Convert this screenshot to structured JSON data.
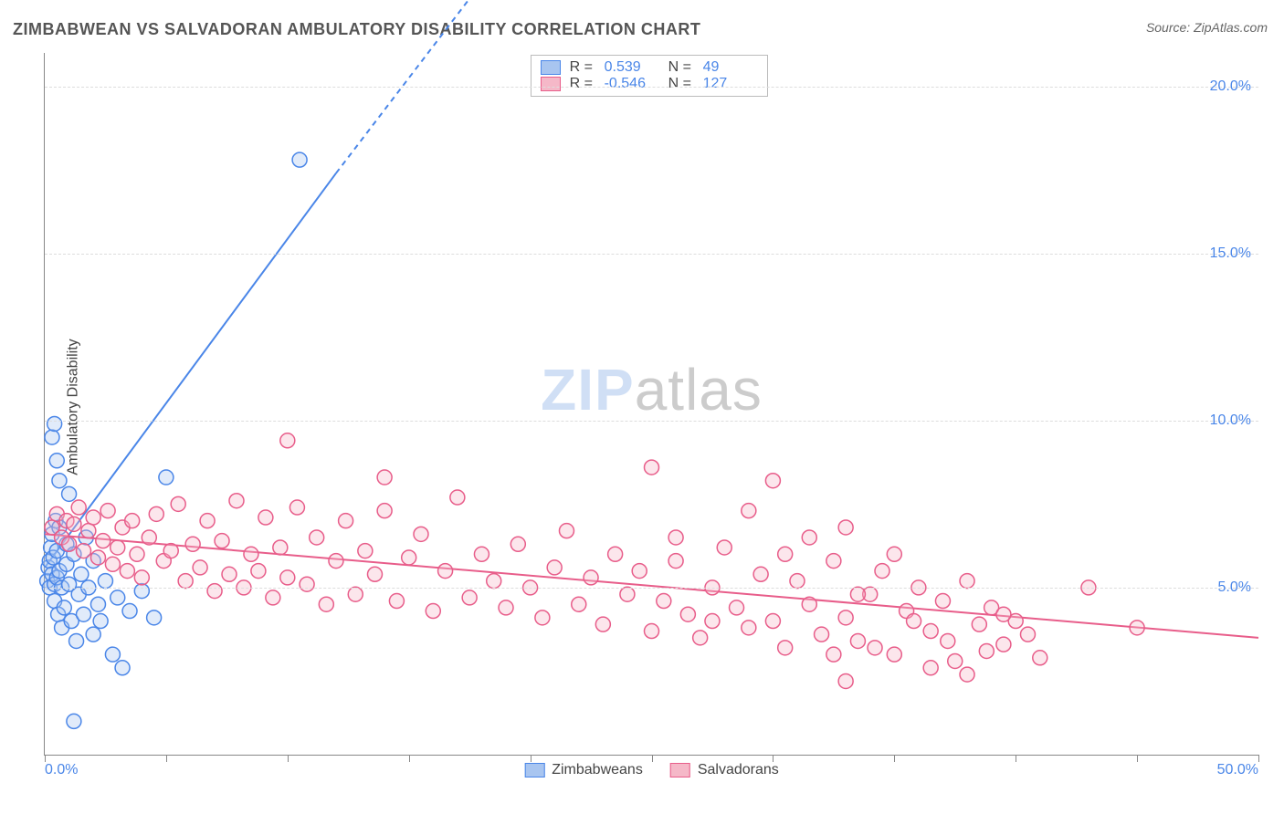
{
  "title": "ZIMBABWEAN VS SALVADORAN AMBULATORY DISABILITY CORRELATION CHART",
  "source_prefix": "Source: ",
  "source_name": "ZipAtlas.com",
  "ylabel": "Ambulatory Disability",
  "watermark_zip": "ZIP",
  "watermark_atlas": "atlas",
  "chart": {
    "type": "scatter",
    "xlim": [
      0,
      50
    ],
    "ylim": [
      0,
      21
    ],
    "background_color": "#ffffff",
    "grid_color": "#dddddd",
    "axis_color": "#888888",
    "y_gridlines": [
      5,
      10,
      15,
      20
    ],
    "y_ticklabels": [
      "5.0%",
      "10.0%",
      "15.0%",
      "20.0%"
    ],
    "x_ticks": [
      0,
      5,
      10,
      15,
      20,
      25,
      30,
      35,
      40,
      45,
      50
    ],
    "x_ticklabels_shown": {
      "0": "0.0%",
      "50": "50.0%"
    },
    "marker_radius": 8,
    "marker_fill_opacity": 0.35,
    "marker_stroke_width": 1.5,
    "tick_label_color": "#4a86e8",
    "tick_label_fontsize": 16,
    "title_fontsize": 18,
    "title_color": "#555555",
    "ylabel_fontsize": 16,
    "ylabel_color": "#444444"
  },
  "series": [
    {
      "name": "Zimbabweans",
      "color_fill": "#a8c5f0",
      "color_stroke": "#4a86e8",
      "R_label": "R =",
      "R_value": "0.539",
      "N_label": "N =",
      "N_value": "49",
      "trend": {
        "x1": 0,
        "y1": 5.6,
        "x2": 12,
        "y2": 17.4,
        "dash_after_x": 12,
        "x3": 20,
        "y3": 25,
        "stroke_width": 2
      },
      "points": [
        [
          0.1,
          5.2
        ],
        [
          0.15,
          5.6
        ],
        [
          0.2,
          5.0
        ],
        [
          0.2,
          5.8
        ],
        [
          0.25,
          6.2
        ],
        [
          0.3,
          5.4
        ],
        [
          0.3,
          6.6
        ],
        [
          0.35,
          5.9
        ],
        [
          0.4,
          4.6
        ],
        [
          0.4,
          5.1
        ],
        [
          0.45,
          7.0
        ],
        [
          0.5,
          5.3
        ],
        [
          0.5,
          6.1
        ],
        [
          0.55,
          4.2
        ],
        [
          0.6,
          5.5
        ],
        [
          0.6,
          6.8
        ],
        [
          0.7,
          3.8
        ],
        [
          0.7,
          5.0
        ],
        [
          0.8,
          4.4
        ],
        [
          0.9,
          5.7
        ],
        [
          0.9,
          6.3
        ],
        [
          1.0,
          5.1
        ],
        [
          1.0,
          7.8
        ],
        [
          1.1,
          4.0
        ],
        [
          1.2,
          6.0
        ],
        [
          1.3,
          3.4
        ],
        [
          1.4,
          4.8
        ],
        [
          1.5,
          5.4
        ],
        [
          1.6,
          4.2
        ],
        [
          1.8,
          5.0
        ],
        [
          2.0,
          3.6
        ],
        [
          2.2,
          4.5
        ],
        [
          2.5,
          5.2
        ],
        [
          2.8,
          3.0
        ],
        [
          3.0,
          4.7
        ],
        [
          3.2,
          2.6
        ],
        [
          3.5,
          4.3
        ],
        [
          4.0,
          4.9
        ],
        [
          4.5,
          4.1
        ],
        [
          5.0,
          8.3
        ],
        [
          0.3,
          9.5
        ],
        [
          0.4,
          9.9
        ],
        [
          0.5,
          8.8
        ],
        [
          0.6,
          8.2
        ],
        [
          1.2,
          1.0
        ],
        [
          2.0,
          5.8
        ],
        [
          2.3,
          4.0
        ],
        [
          1.7,
          6.5
        ],
        [
          10.5,
          17.8
        ]
      ]
    },
    {
      "name": "Salvadorans",
      "color_fill": "#f5b8c8",
      "color_stroke": "#e85d8a",
      "R_label": "R =",
      "R_value": "-0.546",
      "N_label": "N =",
      "N_value": "127",
      "trend": {
        "x1": 0,
        "y1": 6.6,
        "x2": 50,
        "y2": 3.5,
        "stroke_width": 2
      },
      "points": [
        [
          0.3,
          6.8
        ],
        [
          0.5,
          7.2
        ],
        [
          0.7,
          6.5
        ],
        [
          0.9,
          7.0
        ],
        [
          1.0,
          6.3
        ],
        [
          1.2,
          6.9
        ],
        [
          1.4,
          7.4
        ],
        [
          1.6,
          6.1
        ],
        [
          1.8,
          6.7
        ],
        [
          2.0,
          7.1
        ],
        [
          2.2,
          5.9
        ],
        [
          2.4,
          6.4
        ],
        [
          2.6,
          7.3
        ],
        [
          2.8,
          5.7
        ],
        [
          3.0,
          6.2
        ],
        [
          3.2,
          6.8
        ],
        [
          3.4,
          5.5
        ],
        [
          3.6,
          7.0
        ],
        [
          3.8,
          6.0
        ],
        [
          4.0,
          5.3
        ],
        [
          4.3,
          6.5
        ],
        [
          4.6,
          7.2
        ],
        [
          4.9,
          5.8
        ],
        [
          5.2,
          6.1
        ],
        [
          5.5,
          7.5
        ],
        [
          5.8,
          5.2
        ],
        [
          6.1,
          6.3
        ],
        [
          6.4,
          5.6
        ],
        [
          6.7,
          7.0
        ],
        [
          7.0,
          4.9
        ],
        [
          7.3,
          6.4
        ],
        [
          7.6,
          5.4
        ],
        [
          7.9,
          7.6
        ],
        [
          8.2,
          5.0
        ],
        [
          8.5,
          6.0
        ],
        [
          8.8,
          5.5
        ],
        [
          9.1,
          7.1
        ],
        [
          9.4,
          4.7
        ],
        [
          9.7,
          6.2
        ],
        [
          10.0,
          5.3
        ],
        [
          10.0,
          9.4
        ],
        [
          10.4,
          7.4
        ],
        [
          10.8,
          5.1
        ],
        [
          11.2,
          6.5
        ],
        [
          11.6,
          4.5
        ],
        [
          12.0,
          5.8
        ],
        [
          12.4,
          7.0
        ],
        [
          12.8,
          4.8
        ],
        [
          13.2,
          6.1
        ],
        [
          13.6,
          5.4
        ],
        [
          14.0,
          7.3
        ],
        [
          14.0,
          8.3
        ],
        [
          14.5,
          4.6
        ],
        [
          15.0,
          5.9
        ],
        [
          15.5,
          6.6
        ],
        [
          16.0,
          4.3
        ],
        [
          16.5,
          5.5
        ],
        [
          17.0,
          7.7
        ],
        [
          17.5,
          4.7
        ],
        [
          18.0,
          6.0
        ],
        [
          18.5,
          5.2
        ],
        [
          19.0,
          4.4
        ],
        [
          19.5,
          6.3
        ],
        [
          20.0,
          5.0
        ],
        [
          20.5,
          4.1
        ],
        [
          21.0,
          5.6
        ],
        [
          21.5,
          6.7
        ],
        [
          22.0,
          4.5
        ],
        [
          22.5,
          5.3
        ],
        [
          23.0,
          3.9
        ],
        [
          23.5,
          6.0
        ],
        [
          24.0,
          4.8
        ],
        [
          24.5,
          5.5
        ],
        [
          25.0,
          8.6
        ],
        [
          25.0,
          3.7
        ],
        [
          25.5,
          4.6
        ],
        [
          26.0,
          5.8
        ],
        [
          26.5,
          4.2
        ],
        [
          27.0,
          3.5
        ],
        [
          27.5,
          5.0
        ],
        [
          28.0,
          6.2
        ],
        [
          28.5,
          4.4
        ],
        [
          29.0,
          3.8
        ],
        [
          29.5,
          5.4
        ],
        [
          30.0,
          4.0
        ],
        [
          30.0,
          8.2
        ],
        [
          30.5,
          3.2
        ],
        [
          31.0,
          5.2
        ],
        [
          31.5,
          4.5
        ],
        [
          32.0,
          3.6
        ],
        [
          32.5,
          5.8
        ],
        [
          33.0,
          4.1
        ],
        [
          33.5,
          3.4
        ],
        [
          34.0,
          4.8
        ],
        [
          34.5,
          5.5
        ],
        [
          35.0,
          3.0
        ],
        [
          35.5,
          4.3
        ],
        [
          36.0,
          5.0
        ],
        [
          36.5,
          3.7
        ],
        [
          37.0,
          4.6
        ],
        [
          37.5,
          2.8
        ],
        [
          38.0,
          5.2
        ],
        [
          38.5,
          3.9
        ],
        [
          39.0,
          4.4
        ],
        [
          39.5,
          3.3
        ],
        [
          40.0,
          4.0
        ],
        [
          29.0,
          7.3
        ],
        [
          30.5,
          6.0
        ],
        [
          31.5,
          6.5
        ],
        [
          32.5,
          3.0
        ],
        [
          33.0,
          6.8
        ],
        [
          33.5,
          4.8
        ],
        [
          34.2,
          3.2
        ],
        [
          35.0,
          6.0
        ],
        [
          35.8,
          4.0
        ],
        [
          36.5,
          2.6
        ],
        [
          37.2,
          3.4
        ],
        [
          38.0,
          2.4
        ],
        [
          38.8,
          3.1
        ],
        [
          39.5,
          4.2
        ],
        [
          40.5,
          3.6
        ],
        [
          41.0,
          2.9
        ],
        [
          43.0,
          5.0
        ],
        [
          45.0,
          3.8
        ],
        [
          33.0,
          2.2
        ],
        [
          26.0,
          6.5
        ],
        [
          27.5,
          4.0
        ]
      ]
    }
  ],
  "legend_bottom": [
    {
      "label": "Zimbabweans",
      "fill": "#a8c5f0",
      "stroke": "#4a86e8"
    },
    {
      "label": "Salvadorans",
      "fill": "#f5b8c8",
      "stroke": "#e85d8a"
    }
  ]
}
